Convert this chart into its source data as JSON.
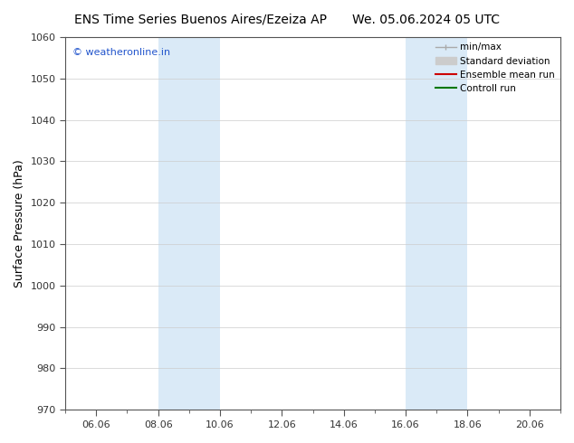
{
  "title_left": "ENS Time Series Buenos Aires/Ezeiza AP",
  "title_right": "We. 05.06.2024 05 UTC",
  "ylabel": "Surface Pressure (hPa)",
  "ylim": [
    970,
    1060
  ],
  "yticks": [
    970,
    980,
    990,
    1000,
    1010,
    1020,
    1030,
    1040,
    1050,
    1060
  ],
  "x_min": 0.0,
  "x_max": 16.0,
  "xtick_labels": [
    "06.06",
    "08.06",
    "10.06",
    "12.06",
    "14.06",
    "16.06",
    "18.06",
    "20.06"
  ],
  "xtick_positions": [
    1.0,
    3.0,
    5.0,
    7.0,
    9.0,
    11.0,
    13.0,
    15.0
  ],
  "shaded_regions": [
    {
      "x_start": 3.0,
      "x_end": 5.0,
      "color": "#daeaf7"
    },
    {
      "x_start": 11.0,
      "x_end": 13.0,
      "color": "#daeaf7"
    }
  ],
  "watermark_text": "© weatheronline.in",
  "watermark_color": "#2255cc",
  "legend_entries": [
    {
      "label": "min/max",
      "color": "#aaaaaa",
      "lw": 1.0
    },
    {
      "label": "Standard deviation",
      "color": "#cccccc",
      "lw": 6
    },
    {
      "label": "Ensemble mean run",
      "color": "#cc0000",
      "lw": 1.5
    },
    {
      "label": "Controll run",
      "color": "#007700",
      "lw": 1.5
    }
  ],
  "bg_color": "#ffffff",
  "plot_bg_color": "#ffffff",
  "grid_color": "#cccccc",
  "spine_color": "#555555",
  "tick_color": "#333333",
  "font_color": "#000000",
  "title_fontsize": 10,
  "ylabel_fontsize": 9,
  "tick_fontsize": 8,
  "watermark_fontsize": 8,
  "legend_fontsize": 7.5
}
